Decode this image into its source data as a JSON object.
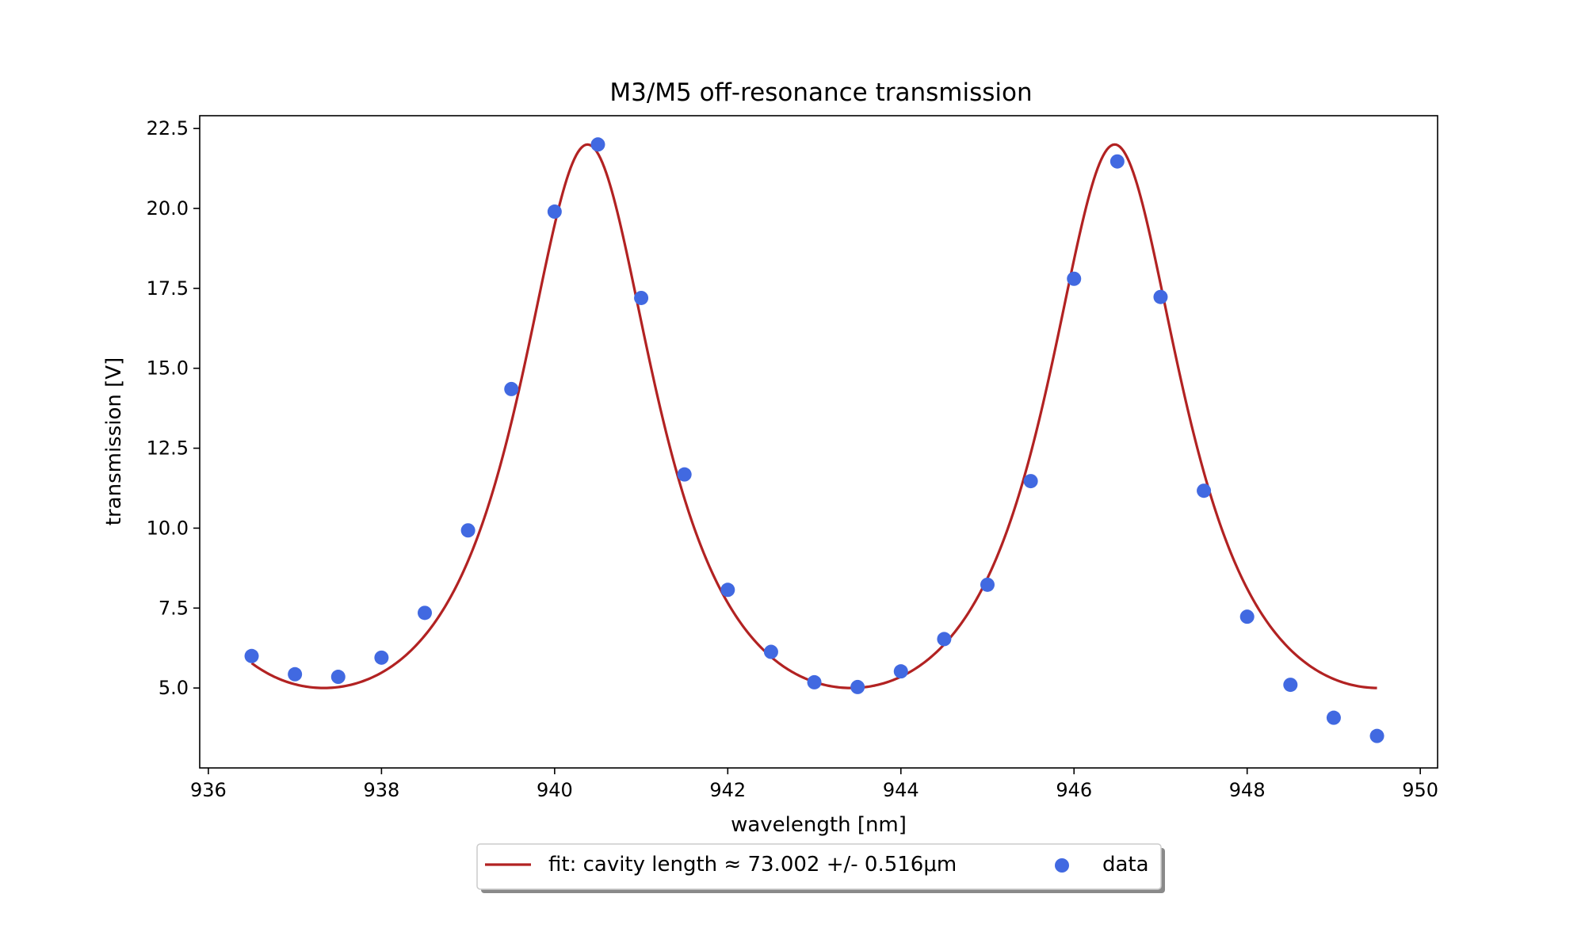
{
  "chart_data": {
    "type": "scatter",
    "title": "M3/M5 off-resonance transmission",
    "xlabel": "wavelength [nm]",
    "ylabel": "transmission [V]",
    "xlim": [
      935.9,
      950.2
    ],
    "ylim": [
      2.5,
      22.9
    ],
    "xticks": [
      936,
      938,
      940,
      942,
      944,
      946,
      948,
      950
    ],
    "yticks": [
      5.0,
      7.5,
      10.0,
      12.5,
      15.0,
      17.5,
      20.0,
      22.5
    ],
    "xtick_labels": [
      "936",
      "938",
      "940",
      "942",
      "944",
      "946",
      "948",
      "950"
    ],
    "ytick_labels": [
      "5.0",
      "7.5",
      "10.0",
      "12.5",
      "15.0",
      "17.5",
      "20.0",
      "22.5"
    ],
    "grid": false,
    "legend_placement": "bottom-center-outside",
    "series": [
      {
        "name": "fit: cavity length ≈ 73.002 +/- 0.516μm",
        "kind": "line",
        "color": "#b22222",
        "model": {
          "type": "airy",
          "baseline": 5.0,
          "peak": 22.0,
          "peak_centers": [
            940.38,
            946.47
          ],
          "x_range": [
            936.5,
            949.5
          ]
        }
      },
      {
        "name": "data",
        "kind": "scatter",
        "color": "#4169e1",
        "x": [
          936.5,
          937.0,
          937.5,
          938.0,
          938.5,
          939.0,
          939.5,
          940.0,
          940.5,
          941.0,
          941.5,
          942.0,
          942.5,
          943.0,
          943.5,
          944.0,
          944.5,
          945.0,
          945.5,
          946.0,
          946.5,
          947.0,
          947.5,
          948.0,
          948.5,
          949.0,
          949.5
        ],
        "y": [
          6.0,
          5.43,
          5.35,
          5.95,
          7.35,
          9.93,
          14.35,
          19.9,
          22.0,
          17.2,
          11.68,
          8.07,
          6.13,
          5.18,
          5.03,
          5.52,
          6.53,
          8.23,
          11.47,
          17.8,
          21.47,
          17.23,
          11.17,
          7.23,
          5.1,
          4.07,
          3.5
        ]
      }
    ]
  }
}
